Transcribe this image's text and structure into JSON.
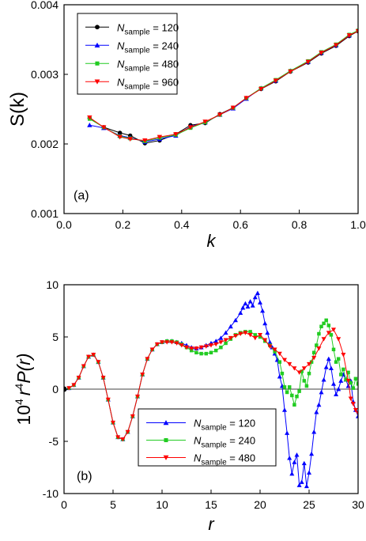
{
  "chart_data": [
    {
      "type": "line",
      "panel_label": "(a)",
      "xlabel": "k",
      "ylabel": "S(k)",
      "xlim": [
        0.0,
        1.0
      ],
      "ylim": [
        0.001,
        0.004
      ],
      "xticks": [
        0.0,
        0.2,
        0.4,
        0.6,
        0.8,
        1.0
      ],
      "xtick_labels": [
        "0.0",
        "0.2",
        "0.4",
        "0.6",
        "0.8",
        "1.0"
      ],
      "yticks": [
        0.001,
        0.002,
        0.003,
        0.004
      ],
      "ytick_labels": [
        "0.001",
        "0.002",
        "0.003",
        "0.004"
      ],
      "legend_position": "top-left",
      "series": [
        {
          "name": "N_sample = 120",
          "legend_main": "N",
          "legend_sub": "sample",
          "legend_rest": " = 120",
          "color": "#000000",
          "marker": "circle",
          "x": [
            0.087,
            0.135,
            0.19,
            0.225,
            0.275,
            0.325,
            0.38,
            0.43,
            0.48,
            0.53,
            0.575,
            0.62,
            0.67,
            0.72,
            0.77,
            0.83,
            0.875,
            0.925,
            0.97,
            1.0
          ],
          "y": [
            0.00237,
            0.00224,
            0.00216,
            0.00212,
            0.00201,
            0.00205,
            0.00214,
            0.00227,
            0.0023,
            0.00243,
            0.00252,
            0.00266,
            0.00279,
            0.0029,
            0.00304,
            0.00317,
            0.0033,
            0.00341,
            0.00355,
            0.00362
          ]
        },
        {
          "name": "N_sample = 240",
          "legend_main": "N",
          "legend_sub": "sample",
          "legend_rest": " = 240",
          "color": "#0000ff",
          "marker": "triangle-up",
          "x": [
            0.087,
            0.135,
            0.19,
            0.225,
            0.275,
            0.325,
            0.38,
            0.43,
            0.48,
            0.53,
            0.575,
            0.62,
            0.67,
            0.72,
            0.77,
            0.83,
            0.875,
            0.925,
            0.97,
            1.0
          ],
          "y": [
            0.00227,
            0.00223,
            0.00212,
            0.00209,
            0.00203,
            0.00207,
            0.00212,
            0.00225,
            0.00231,
            0.00242,
            0.00251,
            0.00265,
            0.0028,
            0.00291,
            0.00305,
            0.00318,
            0.00331,
            0.00342,
            0.00356,
            0.00363
          ]
        },
        {
          "name": "N_sample = 480",
          "legend_main": "N",
          "legend_sub": "sample",
          "legend_rest": " = 480",
          "color": "#22cc22",
          "marker": "square",
          "x": [
            0.087,
            0.135,
            0.19,
            0.225,
            0.275,
            0.325,
            0.38,
            0.43,
            0.48,
            0.53,
            0.575,
            0.62,
            0.67,
            0.72,
            0.77,
            0.83,
            0.875,
            0.925,
            0.97,
            1.0
          ],
          "y": [
            0.00236,
            0.00224,
            0.00211,
            0.00208,
            0.00204,
            0.00209,
            0.00213,
            0.00223,
            0.00231,
            0.00242,
            0.00252,
            0.00266,
            0.0028,
            0.00292,
            0.00305,
            0.00319,
            0.00332,
            0.00343,
            0.00357,
            0.00363
          ]
        },
        {
          "name": "N_sample = 960",
          "legend_main": "N",
          "legend_sub": "sample",
          "legend_rest": " = 960",
          "color": "#ff0000",
          "marker": "triangle-down",
          "x": [
            0.087,
            0.135,
            0.19,
            0.225,
            0.275,
            0.325,
            0.38,
            0.43,
            0.48,
            0.53,
            0.575,
            0.62,
            0.67,
            0.72,
            0.77,
            0.83,
            0.875,
            0.925,
            0.97,
            1.0
          ],
          "y": [
            0.00238,
            0.00224,
            0.0021,
            0.00207,
            0.00205,
            0.0021,
            0.00214,
            0.00224,
            0.00232,
            0.00242,
            0.00252,
            0.00266,
            0.00279,
            0.00291,
            0.00304,
            0.00318,
            0.00331,
            0.00342,
            0.00356,
            0.00362
          ]
        }
      ]
    },
    {
      "type": "line",
      "panel_label": "(b)",
      "xlabel": "r",
      "ylabel_prefix": "10",
      "ylabel_prefix_sup": "4",
      "ylabel_r": "r",
      "ylabel_r_sup": "4",
      "ylabel_rest": "P(r)",
      "xlim": [
        0,
        30
      ],
      "ylim": [
        -10,
        10
      ],
      "xticks": [
        0,
        5,
        10,
        15,
        20,
        25,
        30
      ],
      "xtick_labels": [
        "0",
        "5",
        "10",
        "15",
        "20",
        "25",
        "30"
      ],
      "yticks": [
        -10,
        -5,
        0,
        5,
        10
      ],
      "ytick_labels": [
        "-10",
        "-5",
        "0",
        "5",
        "10"
      ],
      "zero_line": true,
      "origin_marker": {
        "x": 0,
        "y": 0
      },
      "legend_position": "bottom-center",
      "series": [
        {
          "name": "N_sample = 120",
          "legend_main": "N",
          "legend_sub": "sample",
          "legend_rest": " = 120",
          "color": "#0000ff",
          "marker": "triangle-up",
          "x": [
            0.5,
            1.0,
            1.5,
            2.0,
            2.5,
            3.0,
            3.5,
            4.0,
            4.5,
            5.0,
            5.5,
            6.0,
            6.5,
            7.0,
            7.5,
            8.0,
            8.5,
            9.0,
            9.5,
            10.0,
            10.5,
            11.0,
            11.5,
            12.0,
            12.5,
            13.0,
            13.5,
            14.0,
            14.5,
            15.0,
            15.5,
            16.0,
            16.5,
            17.0,
            17.5,
            18.0,
            18.25,
            18.5,
            18.75,
            19.0,
            19.25,
            19.5,
            19.75,
            20.0,
            20.25,
            20.5,
            20.75,
            21.0,
            21.25,
            21.5,
            21.75,
            22.0,
            22.25,
            22.5,
            22.75,
            23.0,
            23.25,
            23.5,
            23.75,
            24.0,
            24.25,
            24.5,
            24.75,
            25.0,
            25.25,
            25.5,
            25.75,
            26.0,
            26.25,
            26.5,
            26.75,
            27.0,
            27.25,
            27.5,
            27.75,
            28.0,
            28.25,
            28.5,
            28.75,
            29.0,
            29.25,
            29.5,
            29.75,
            30.0
          ],
          "y": [
            0.1,
            0.4,
            1.1,
            2.2,
            3.1,
            3.3,
            2.6,
            1.1,
            -1.0,
            -3.2,
            -4.6,
            -4.8,
            -4.1,
            -2.6,
            -0.7,
            1.4,
            2.9,
            3.8,
            4.3,
            4.5,
            4.6,
            4.6,
            4.5,
            4.4,
            4.2,
            4.0,
            3.9,
            4.0,
            4.2,
            4.4,
            4.6,
            4.9,
            5.4,
            6.0,
            6.6,
            7.3,
            7.8,
            8.2,
            7.9,
            8.4,
            8.0,
            8.8,
            9.2,
            8.3,
            7.5,
            6.3,
            5.4,
            4.5,
            4.0,
            3.4,
            2.8,
            1.2,
            0.3,
            -2.0,
            -4.2,
            -6.6,
            -8.1,
            -7.0,
            -6.3,
            -9.2,
            -8.9,
            -7.1,
            -9.3,
            -8.0,
            -6.2,
            -4.1,
            -2.2,
            -1.5,
            -0.3,
            0.9,
            2.1,
            2.9,
            2.0,
            0.5,
            -0.5,
            0.0,
            0.8,
            1.4,
            0.9,
            0.3,
            0.8,
            -1.2,
            -2.0,
            -2.6
          ]
        },
        {
          "name": "N_sample = 240",
          "legend_main": "N",
          "legend_sub": "sample",
          "legend_rest": " = 240",
          "color": "#22cc22",
          "marker": "square",
          "x": [
            0.5,
            1.0,
            1.5,
            2.0,
            2.5,
            3.0,
            3.5,
            4.0,
            4.5,
            5.0,
            5.5,
            6.0,
            6.5,
            7.0,
            7.5,
            8.0,
            8.5,
            9.0,
            9.5,
            10.0,
            10.5,
            11.0,
            11.5,
            12.0,
            12.5,
            13.0,
            13.5,
            14.0,
            14.5,
            15.0,
            15.5,
            16.0,
            16.5,
            17.0,
            17.5,
            18.0,
            18.5,
            19.0,
            19.5,
            20.0,
            20.5,
            21.0,
            21.5,
            22.0,
            22.25,
            22.5,
            22.75,
            23.0,
            23.25,
            23.5,
            23.75,
            24.0,
            24.25,
            24.5,
            24.75,
            25.0,
            25.25,
            25.5,
            25.75,
            26.0,
            26.25,
            26.5,
            26.75,
            27.0,
            27.25,
            27.5,
            27.75,
            28.0,
            28.25,
            28.5,
            28.75,
            29.0,
            29.25,
            29.5,
            29.75,
            30.0
          ],
          "y": [
            0.1,
            0.4,
            1.1,
            2.2,
            3.1,
            3.3,
            2.6,
            1.1,
            -1.0,
            -3.2,
            -4.6,
            -4.8,
            -4.1,
            -2.6,
            -0.7,
            1.4,
            2.9,
            3.8,
            4.3,
            4.5,
            4.6,
            4.6,
            4.5,
            4.3,
            4.0,
            3.7,
            3.5,
            3.4,
            3.4,
            3.5,
            3.7,
            4.0,
            4.4,
            4.8,
            5.2,
            5.4,
            5.5,
            5.5,
            5.2,
            5.0,
            4.6,
            4.2,
            3.6,
            2.6,
            1.5,
            0.2,
            -0.3,
            0.2,
            -0.6,
            -1.5,
            -0.7,
            -0.2,
            1.7,
            0.8,
            0.3,
            1.5,
            2.6,
            3.5,
            4.2,
            5.3,
            6.0,
            6.3,
            6.6,
            6.1,
            5.2,
            3.8,
            2.6,
            2.9,
            1.4,
            1.9,
            0.9,
            1.6,
            0.6,
            0.1,
            1.0,
            0.5
          ]
        },
        {
          "name": "N_sample = 480",
          "legend_main": "N",
          "legend_sub": "sample",
          "legend_rest": " = 480",
          "color": "#ff0000",
          "marker": "triangle-down",
          "x": [
            0.5,
            1.0,
            1.5,
            2.0,
            2.5,
            3.0,
            3.5,
            4.0,
            4.5,
            5.0,
            5.5,
            6.0,
            6.5,
            7.0,
            7.5,
            8.0,
            8.5,
            9.0,
            9.5,
            10.0,
            10.5,
            11.0,
            11.5,
            12.0,
            12.5,
            13.0,
            13.5,
            14.0,
            14.5,
            15.0,
            15.5,
            16.0,
            16.5,
            17.0,
            17.5,
            18.0,
            18.5,
            19.0,
            19.5,
            20.0,
            20.5,
            21.0,
            21.5,
            22.0,
            22.5,
            23.0,
            23.5,
            24.0,
            24.5,
            25.0,
            25.5,
            26.0,
            26.5,
            27.0,
            27.5,
            28.0,
            28.5,
            29.0,
            29.25,
            29.5,
            29.75,
            30.0
          ],
          "y": [
            0.1,
            0.4,
            1.1,
            2.2,
            3.1,
            3.3,
            2.6,
            1.1,
            -1.0,
            -3.2,
            -4.6,
            -4.8,
            -4.1,
            -2.6,
            -0.7,
            1.4,
            2.9,
            3.8,
            4.3,
            4.5,
            4.5,
            4.5,
            4.4,
            4.2,
            4.0,
            3.9,
            3.9,
            4.0,
            4.1,
            4.2,
            4.3,
            4.5,
            4.7,
            4.9,
            5.1,
            5.3,
            5.4,
            5.2,
            4.9,
            5.2,
            4.7,
            4.1,
            3.8,
            3.4,
            2.8,
            2.4,
            2.0,
            1.6,
            2.0,
            2.4,
            3.0,
            3.9,
            4.8,
            5.4,
            5.7,
            4.8,
            3.3,
            0.8,
            -0.9,
            -1.4,
            -2.0,
            -2.3
          ]
        }
      ]
    }
  ]
}
